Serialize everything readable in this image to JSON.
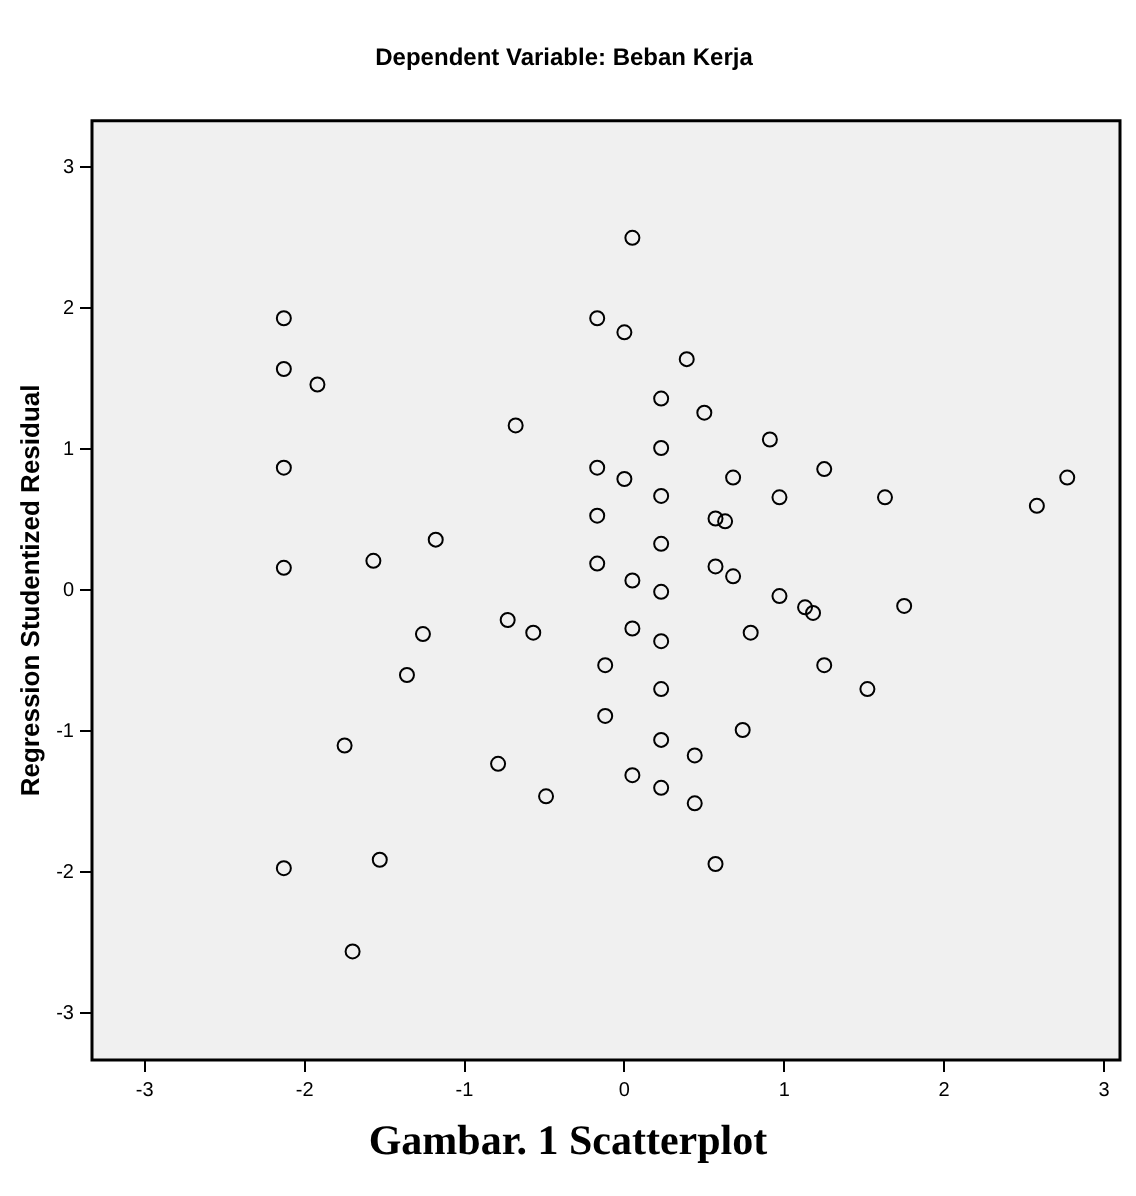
{
  "chart_data": {
    "type": "scatter",
    "title": "Dependent Variable: Beban Kerja",
    "ylabel": "Regression Studentized Residual",
    "annotations": [
      "Gambar. 1 Scatterplot"
    ],
    "x": [
      -2.13,
      -2.13,
      -1.92,
      -2.13,
      -2.13,
      -2.13,
      -1.57,
      -1.18,
      -1.26,
      -1.36,
      -1.75,
      -1.53,
      -1.7,
      -0.68,
      -0.73,
      -0.57,
      -0.79,
      -0.49,
      -0.17,
      0.0,
      0.05,
      -0.17,
      0.0,
      -0.17,
      -0.17,
      0.05,
      -0.12,
      -0.12,
      0.05,
      0.05,
      0.23,
      0.23,
      0.23,
      0.23,
      0.23,
      0.23,
      0.23,
      0.23,
      0.23,
      0.39,
      0.5,
      0.91,
      0.68,
      0.97,
      1.25,
      0.57,
      0.63,
      0.57,
      0.68,
      1.63,
      2.58,
      2.77,
      0.97,
      1.13,
      1.18,
      1.75,
      0.79,
      1.25,
      1.52,
      0.74,
      0.44,
      0.44,
      0.57
    ],
    "values": [
      1.93,
      1.57,
      1.46,
      0.87,
      0.16,
      -1.97,
      0.21,
      0.36,
      -0.31,
      -0.6,
      -1.1,
      -1.91,
      -2.56,
      1.17,
      -0.21,
      -0.3,
      -1.23,
      -1.46,
      1.93,
      1.83,
      2.5,
      0.87,
      0.79,
      0.53,
      0.19,
      0.07,
      -0.53,
      -0.89,
      -0.27,
      -1.31,
      1.36,
      1.01,
      0.67,
      0.33,
      -0.01,
      -0.36,
      -0.7,
      -1.06,
      -1.4,
      1.64,
      1.26,
      1.07,
      0.8,
      0.66,
      0.86,
      0.51,
      0.49,
      0.17,
      0.1,
      0.66,
      0.6,
      0.8,
      -0.04,
      -0.12,
      -0.16,
      -0.11,
      -0.3,
      -0.53,
      -0.7,
      -0.99,
      -1.17,
      -1.51,
      -1.94
    ],
    "color": "#000000",
    "marker": "circle",
    "xlim": [
      -3.33,
      3.1
    ],
    "ylim": [
      -3.33,
      3.33
    ],
    "xticks": [
      -3,
      -2,
      -1,
      0,
      1,
      2,
      3
    ],
    "yticks": [
      -3,
      -2,
      -1,
      0,
      1,
      2,
      3
    ]
  }
}
